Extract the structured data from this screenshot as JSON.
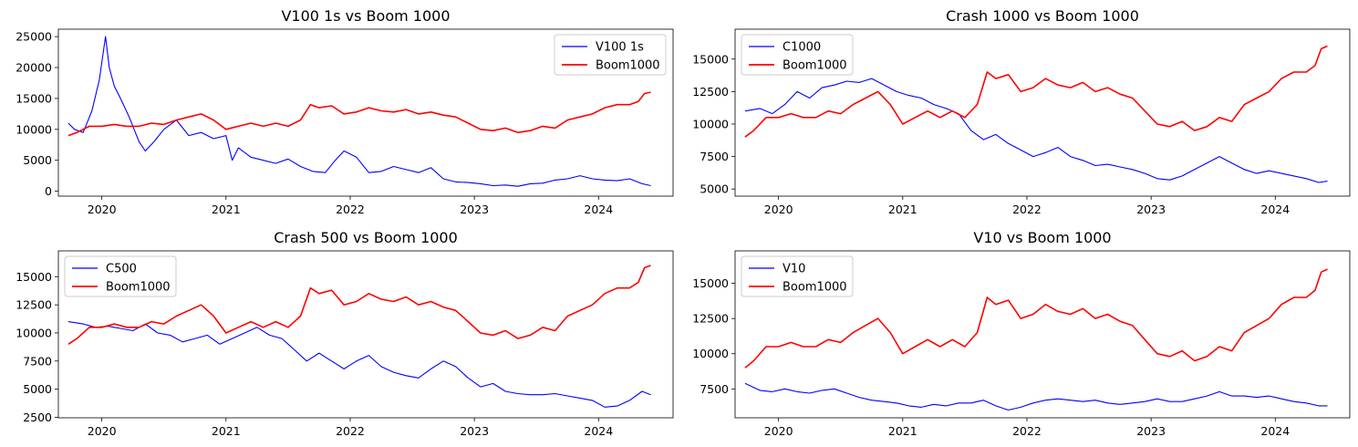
{
  "colors": {
    "series_a": "#0000ff",
    "series_b": "#ff0000"
  },
  "chart_data": [
    {
      "type": "line",
      "title": "V100 1s vs Boom 1000",
      "xlabel": "",
      "ylabel": "",
      "xlim": [
        2019.65,
        2024.6
      ],
      "ylim": [
        -800,
        26200
      ],
      "x_ticks": [
        2020,
        2021,
        2022,
        2023,
        2024
      ],
      "y_ticks": [
        0,
        5000,
        10000,
        15000,
        20000,
        25000
      ],
      "legend": "top-right",
      "series": [
        {
          "name": "V100 1s",
          "color": "#0000ff",
          "x": [
            2019.73,
            2019.78,
            2019.85,
            2019.92,
            2019.98,
            2020.03,
            2020.06,
            2020.1,
            2020.15,
            2020.22,
            2020.3,
            2020.35,
            2020.42,
            2020.5,
            2020.6,
            2020.7,
            2020.8,
            2020.9,
            2021.0,
            2021.05,
            2021.1,
            2021.2,
            2021.3,
            2021.4,
            2021.5,
            2021.6,
            2021.7,
            2021.8,
            2021.88,
            2021.95,
            2022.05,
            2022.15,
            2022.25,
            2022.35,
            2022.45,
            2022.55,
            2022.65,
            2022.75,
            2022.85,
            2022.95,
            2023.05,
            2023.15,
            2023.25,
            2023.35,
            2023.45,
            2023.55,
            2023.65,
            2023.75,
            2023.85,
            2023.95,
            2024.05,
            2024.15,
            2024.25,
            2024.35,
            2024.42
          ],
          "y": [
            11000,
            10000,
            9500,
            13000,
            18000,
            25000,
            20000,
            17000,
            15000,
            12000,
            8000,
            6500,
            8000,
            10000,
            11500,
            9000,
            9500,
            8500,
            9000,
            5000,
            7000,
            5500,
            5000,
            4500,
            5200,
            4000,
            3200,
            3000,
            5000,
            6500,
            5500,
            3000,
            3200,
            4000,
            3500,
            3000,
            3800,
            2000,
            1500,
            1400,
            1200,
            900,
            1000,
            800,
            1200,
            1300,
            1800,
            2000,
            2500,
            2000,
            1800,
            1700,
            2000,
            1200,
            900
          ]
        },
        {
          "name": "Boom1000",
          "color": "#ff0000",
          "x": [
            2019.73,
            2019.8,
            2019.9,
            2020.0,
            2020.1,
            2020.2,
            2020.3,
            2020.4,
            2020.5,
            2020.6,
            2020.7,
            2020.8,
            2020.9,
            2021.0,
            2021.1,
            2021.2,
            2021.3,
            2021.4,
            2021.5,
            2021.6,
            2021.68,
            2021.75,
            2021.85,
            2021.95,
            2022.05,
            2022.15,
            2022.25,
            2022.35,
            2022.45,
            2022.55,
            2022.65,
            2022.75,
            2022.85,
            2022.95,
            2023.05,
            2023.15,
            2023.25,
            2023.35,
            2023.45,
            2023.55,
            2023.65,
            2023.75,
            2023.85,
            2023.95,
            2024.05,
            2024.15,
            2024.25,
            2024.32,
            2024.37,
            2024.42
          ],
          "y": [
            9000,
            9500,
            10500,
            10500,
            10800,
            10500,
            10500,
            11000,
            10800,
            11500,
            12000,
            12500,
            11500,
            10000,
            10500,
            11000,
            10500,
            11000,
            10500,
            11500,
            14000,
            13500,
            13800,
            12500,
            12800,
            13500,
            13000,
            12800,
            13200,
            12500,
            12800,
            12300,
            12000,
            11000,
            10000,
            9800,
            10200,
            9500,
            9800,
            10500,
            10200,
            11500,
            12000,
            12500,
            13500,
            14000,
            14000,
            14500,
            15800,
            16000
          ]
        }
      ]
    },
    {
      "type": "line",
      "title": "Crash 1000 vs Boom 1000",
      "xlabel": "",
      "ylabel": "",
      "xlim": [
        2019.65,
        2024.6
      ],
      "ylim": [
        4450,
        17300
      ],
      "x_ticks": [
        2020,
        2021,
        2022,
        2023,
        2024
      ],
      "y_ticks": [
        5000,
        7500,
        10000,
        12500,
        15000
      ],
      "legend": "top-left",
      "series": [
        {
          "name": "C1000",
          "color": "#0000ff",
          "x": [
            2019.73,
            2019.85,
            2019.95,
            2020.05,
            2020.15,
            2020.25,
            2020.35,
            2020.45,
            2020.55,
            2020.65,
            2020.75,
            2020.85,
            2020.95,
            2021.05,
            2021.15,
            2021.25,
            2021.35,
            2021.45,
            2021.55,
            2021.65,
            2021.75,
            2021.85,
            2021.95,
            2022.05,
            2022.15,
            2022.25,
            2022.35,
            2022.45,
            2022.55,
            2022.65,
            2022.75,
            2022.85,
            2022.95,
            2023.05,
            2023.15,
            2023.25,
            2023.35,
            2023.45,
            2023.55,
            2023.65,
            2023.75,
            2023.85,
            2023.95,
            2024.05,
            2024.15,
            2024.25,
            2024.35,
            2024.42
          ],
          "y": [
            11000,
            11200,
            10800,
            11500,
            12500,
            12000,
            12800,
            13000,
            13300,
            13200,
            13500,
            13000,
            12500,
            12200,
            12000,
            11500,
            11200,
            10800,
            9500,
            8800,
            9200,
            8500,
            8000,
            7500,
            7800,
            8200,
            7500,
            7200,
            6800,
            6900,
            6700,
            6500,
            6200,
            5800,
            5700,
            6000,
            6500,
            7000,
            7500,
            7000,
            6500,
            6200,
            6400,
            6200,
            6000,
            5800,
            5500,
            5600
          ]
        },
        {
          "name": "Boom1000",
          "color": "#ff0000",
          "x": [
            2019.73,
            2019.8,
            2019.9,
            2020.0,
            2020.1,
            2020.2,
            2020.3,
            2020.4,
            2020.5,
            2020.6,
            2020.7,
            2020.8,
            2020.9,
            2021.0,
            2021.1,
            2021.2,
            2021.3,
            2021.4,
            2021.5,
            2021.6,
            2021.68,
            2021.75,
            2021.85,
            2021.95,
            2022.05,
            2022.15,
            2022.25,
            2022.35,
            2022.45,
            2022.55,
            2022.65,
            2022.75,
            2022.85,
            2022.95,
            2023.05,
            2023.15,
            2023.25,
            2023.35,
            2023.45,
            2023.55,
            2023.65,
            2023.75,
            2023.85,
            2023.95,
            2024.05,
            2024.15,
            2024.25,
            2024.32,
            2024.37,
            2024.42
          ],
          "y": [
            9000,
            9500,
            10500,
            10500,
            10800,
            10500,
            10500,
            11000,
            10800,
            11500,
            12000,
            12500,
            11500,
            10000,
            10500,
            11000,
            10500,
            11000,
            10500,
            11500,
            14000,
            13500,
            13800,
            12500,
            12800,
            13500,
            13000,
            12800,
            13200,
            12500,
            12800,
            12300,
            12000,
            11000,
            10000,
            9800,
            10200,
            9500,
            9800,
            10500,
            10200,
            11500,
            12000,
            12500,
            13500,
            14000,
            14000,
            14500,
            15800,
            16000
          ]
        }
      ]
    },
    {
      "type": "line",
      "title": "Crash 500 vs Boom 1000",
      "xlabel": "",
      "ylabel": "",
      "xlim": [
        2019.65,
        2024.6
      ],
      "ylim": [
        2450,
        17300
      ],
      "x_ticks": [
        2020,
        2021,
        2022,
        2023,
        2024
      ],
      "y_ticks": [
        2500,
        5000,
        7500,
        10000,
        12500,
        15000
      ],
      "legend": "top-left",
      "series": [
        {
          "name": "C500",
          "color": "#0000ff",
          "x": [
            2019.73,
            2019.85,
            2019.95,
            2020.05,
            2020.15,
            2020.25,
            2020.35,
            2020.45,
            2020.55,
            2020.65,
            2020.75,
            2020.85,
            2020.95,
            2021.05,
            2021.15,
            2021.25,
            2021.35,
            2021.45,
            2021.55,
            2021.65,
            2021.75,
            2021.85,
            2021.95,
            2022.05,
            2022.15,
            2022.25,
            2022.35,
            2022.45,
            2022.55,
            2022.65,
            2022.75,
            2022.85,
            2022.95,
            2023.05,
            2023.15,
            2023.25,
            2023.35,
            2023.45,
            2023.55,
            2023.65,
            2023.75,
            2023.85,
            2023.95,
            2024.05,
            2024.15,
            2024.25,
            2024.35,
            2024.42
          ],
          "y": [
            11000,
            10800,
            10500,
            10600,
            10400,
            10200,
            10800,
            10000,
            9800,
            9200,
            9500,
            9800,
            9000,
            9500,
            10000,
            10500,
            9800,
            9500,
            8500,
            7500,
            8200,
            7500,
            6800,
            7500,
            8000,
            7000,
            6500,
            6200,
            6000,
            6800,
            7500,
            7000,
            6000,
            5200,
            5500,
            4800,
            4600,
            4500,
            4500,
            4600,
            4400,
            4200,
            4000,
            3400,
            3500,
            4000,
            4800,
            4500
          ]
        },
        {
          "name": "Boom1000",
          "color": "#ff0000",
          "x": [
            2019.73,
            2019.8,
            2019.9,
            2020.0,
            2020.1,
            2020.2,
            2020.3,
            2020.4,
            2020.5,
            2020.6,
            2020.7,
            2020.8,
            2020.9,
            2021.0,
            2021.1,
            2021.2,
            2021.3,
            2021.4,
            2021.5,
            2021.6,
            2021.68,
            2021.75,
            2021.85,
            2021.95,
            2022.05,
            2022.15,
            2022.25,
            2022.35,
            2022.45,
            2022.55,
            2022.65,
            2022.75,
            2022.85,
            2022.95,
            2023.05,
            2023.15,
            2023.25,
            2023.35,
            2023.45,
            2023.55,
            2023.65,
            2023.75,
            2023.85,
            2023.95,
            2024.05,
            2024.15,
            2024.25,
            2024.32,
            2024.37,
            2024.42
          ],
          "y": [
            9000,
            9500,
            10500,
            10500,
            10800,
            10500,
            10500,
            11000,
            10800,
            11500,
            12000,
            12500,
            11500,
            10000,
            10500,
            11000,
            10500,
            11000,
            10500,
            11500,
            14000,
            13500,
            13800,
            12500,
            12800,
            13500,
            13000,
            12800,
            13200,
            12500,
            12800,
            12300,
            12000,
            11000,
            10000,
            9800,
            10200,
            9500,
            9800,
            10500,
            10200,
            11500,
            12000,
            12500,
            13500,
            14000,
            14000,
            14500,
            15800,
            16000
          ]
        }
      ]
    },
    {
      "type": "line",
      "title": "V10 vs Boom 1000",
      "xlabel": "",
      "ylabel": "",
      "xlim": [
        2019.65,
        2024.6
      ],
      "ylim": [
        5450,
        17300
      ],
      "x_ticks": [
        2020,
        2021,
        2022,
        2023,
        2024
      ],
      "y_ticks": [
        7500,
        10000,
        12500,
        15000
      ],
      "legend": "top-left",
      "series": [
        {
          "name": "V10",
          "color": "#0000ff",
          "x": [
            2019.73,
            2019.85,
            2019.95,
            2020.05,
            2020.15,
            2020.25,
            2020.35,
            2020.45,
            2020.55,
            2020.65,
            2020.75,
            2020.85,
            2020.95,
            2021.05,
            2021.15,
            2021.25,
            2021.35,
            2021.45,
            2021.55,
            2021.65,
            2021.75,
            2021.85,
            2021.95,
            2022.05,
            2022.15,
            2022.25,
            2022.35,
            2022.45,
            2022.55,
            2022.65,
            2022.75,
            2022.85,
            2022.95,
            2023.05,
            2023.15,
            2023.25,
            2023.35,
            2023.45,
            2023.55,
            2023.65,
            2023.75,
            2023.85,
            2023.95,
            2024.05,
            2024.15,
            2024.25,
            2024.35,
            2024.42
          ],
          "y": [
            7900,
            7400,
            7300,
            7500,
            7300,
            7200,
            7400,
            7500,
            7200,
            6900,
            6700,
            6600,
            6500,
            6300,
            6200,
            6400,
            6300,
            6500,
            6500,
            6700,
            6300,
            6000,
            6200,
            6500,
            6700,
            6800,
            6700,
            6600,
            6700,
            6500,
            6400,
            6500,
            6600,
            6800,
            6600,
            6600,
            6800,
            7000,
            7300,
            7000,
            7000,
            6900,
            7000,
            6800,
            6600,
            6500,
            6300,
            6300
          ]
        },
        {
          "name": "Boom1000",
          "color": "#ff0000",
          "x": [
            2019.73,
            2019.8,
            2019.9,
            2020.0,
            2020.1,
            2020.2,
            2020.3,
            2020.4,
            2020.5,
            2020.6,
            2020.7,
            2020.8,
            2020.9,
            2021.0,
            2021.1,
            2021.2,
            2021.3,
            2021.4,
            2021.5,
            2021.6,
            2021.68,
            2021.75,
            2021.85,
            2021.95,
            2022.05,
            2022.15,
            2022.25,
            2022.35,
            2022.45,
            2022.55,
            2022.65,
            2022.75,
            2022.85,
            2022.95,
            2023.05,
            2023.15,
            2023.25,
            2023.35,
            2023.45,
            2023.55,
            2023.65,
            2023.75,
            2023.85,
            2023.95,
            2024.05,
            2024.15,
            2024.25,
            2024.32,
            2024.37,
            2024.42
          ],
          "y": [
            9000,
            9500,
            10500,
            10500,
            10800,
            10500,
            10500,
            11000,
            10800,
            11500,
            12000,
            12500,
            11500,
            10000,
            10500,
            11000,
            10500,
            11000,
            10500,
            11500,
            14000,
            13500,
            13800,
            12500,
            12800,
            13500,
            13000,
            12800,
            13200,
            12500,
            12800,
            12300,
            12000,
            11000,
            10000,
            9800,
            10200,
            9500,
            9800,
            10500,
            10200,
            11500,
            12000,
            12500,
            13500,
            14000,
            14000,
            14500,
            15800,
            16000
          ]
        }
      ]
    }
  ]
}
